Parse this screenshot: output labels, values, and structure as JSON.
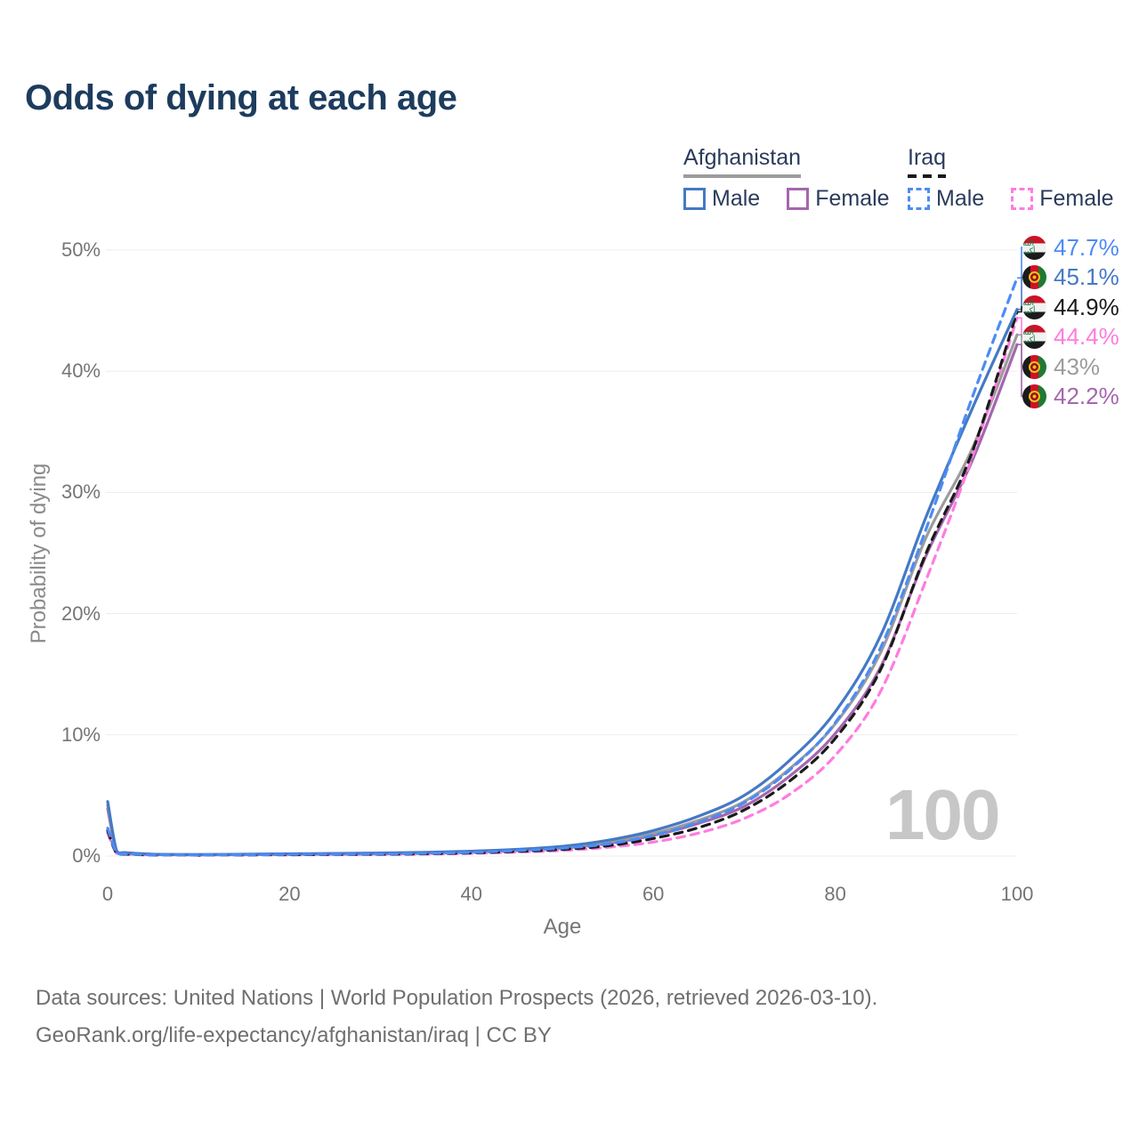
{
  "title": "Odds of dying at each age",
  "legend": {
    "groups": [
      {
        "label": "Afghanistan",
        "items": [
          {
            "label": "Male"
          },
          {
            "label": "Female"
          }
        ]
      },
      {
        "label": "Iraq",
        "items": [
          {
            "label": "Male"
          },
          {
            "label": "Female"
          }
        ]
      }
    ]
  },
  "chart_data": {
    "type": "line",
    "title": "Odds of dying at each age",
    "xlabel": "Age",
    "ylabel": "Probability of dying",
    "xlim": [
      0,
      100
    ],
    "ylim": [
      0,
      50
    ],
    "xticks": [
      "0",
      "20",
      "40",
      "60",
      "80",
      "100"
    ],
    "yticks": [
      "0%",
      "10%",
      "20%",
      "30%",
      "40%",
      "50%"
    ],
    "grid": "horizontal",
    "age_marker": "100",
    "x": [
      0,
      1,
      2,
      5,
      10,
      15,
      20,
      25,
      30,
      35,
      40,
      45,
      50,
      55,
      60,
      65,
      70,
      75,
      80,
      85,
      90,
      95,
      100
    ],
    "series": [
      {
        "name": "Iraq Male",
        "country": "Iraq",
        "sex": "Male",
        "color": "#4c8bf5",
        "dashed": true,
        "end_label": "47.7%",
        "values": [
          2.3,
          0.25,
          0.18,
          0.1,
          0.08,
          0.1,
          0.13,
          0.15,
          0.17,
          0.22,
          0.3,
          0.45,
          0.65,
          1.0,
          1.7,
          2.8,
          4.4,
          7.1,
          11.0,
          17.2,
          27.0,
          37.7,
          47.7
        ]
      },
      {
        "name": "Afghanistan Male",
        "country": "Afghanistan",
        "sex": "Male",
        "color": "#4579c4",
        "dashed": false,
        "end_label": "45.1%",
        "values": [
          4.5,
          0.4,
          0.28,
          0.15,
          0.12,
          0.15,
          0.18,
          0.21,
          0.25,
          0.31,
          0.4,
          0.55,
          0.8,
          1.3,
          2.1,
          3.3,
          5.0,
          7.9,
          11.9,
          18.2,
          28.0,
          36.8,
          45.1
        ]
      },
      {
        "name": "Iraq Total",
        "country": "Iraq",
        "sex": "Total",
        "color": "#1a1a1a",
        "dashed": true,
        "end_label": "44.9%",
        "values": [
          2.1,
          0.22,
          0.16,
          0.09,
          0.07,
          0.09,
          0.11,
          0.13,
          0.15,
          0.19,
          0.26,
          0.38,
          0.55,
          0.85,
          1.45,
          2.35,
          3.8,
          6.2,
          9.7,
          15.4,
          25.0,
          33.2,
          44.9
        ]
      },
      {
        "name": "Iraq Female",
        "country": "Iraq",
        "sex": "Female",
        "color": "#ff7ce0",
        "dashed": true,
        "end_label": "44.4%",
        "values": [
          1.9,
          0.2,
          0.14,
          0.08,
          0.06,
          0.08,
          0.09,
          0.11,
          0.13,
          0.16,
          0.22,
          0.32,
          0.46,
          0.72,
          1.15,
          1.9,
          3.1,
          5.1,
          8.3,
          13.6,
          22.8,
          32.8,
          44.4
        ]
      },
      {
        "name": "Afghanistan Total",
        "country": "Afghanistan",
        "sex": "Total",
        "color": "#9c9c9c",
        "dashed": false,
        "end_label": "43%",
        "values": [
          4.2,
          0.37,
          0.26,
          0.14,
          0.11,
          0.13,
          0.16,
          0.19,
          0.22,
          0.28,
          0.36,
          0.5,
          0.72,
          1.15,
          1.85,
          2.95,
          4.5,
          7.2,
          10.9,
          16.8,
          26.3,
          33.5,
          43.0
        ]
      },
      {
        "name": "Afghanistan Female",
        "country": "Afghanistan",
        "sex": "Female",
        "color": "#a566ae",
        "dashed": false,
        "end_label": "42.2%",
        "values": [
          3.9,
          0.34,
          0.24,
          0.13,
          0.1,
          0.12,
          0.14,
          0.17,
          0.2,
          0.25,
          0.33,
          0.46,
          0.66,
          1.05,
          1.7,
          2.7,
          4.1,
          6.6,
          10.1,
          15.6,
          24.8,
          32.5,
          42.2
        ]
      }
    ]
  },
  "footer": {
    "line1": "Data sources: United Nations | World Population Prospects (2026, retrieved 2026-03-10).",
    "line2": "GeoRank.org/life-expectancy/afghanistan/iraq | CC BY"
  }
}
